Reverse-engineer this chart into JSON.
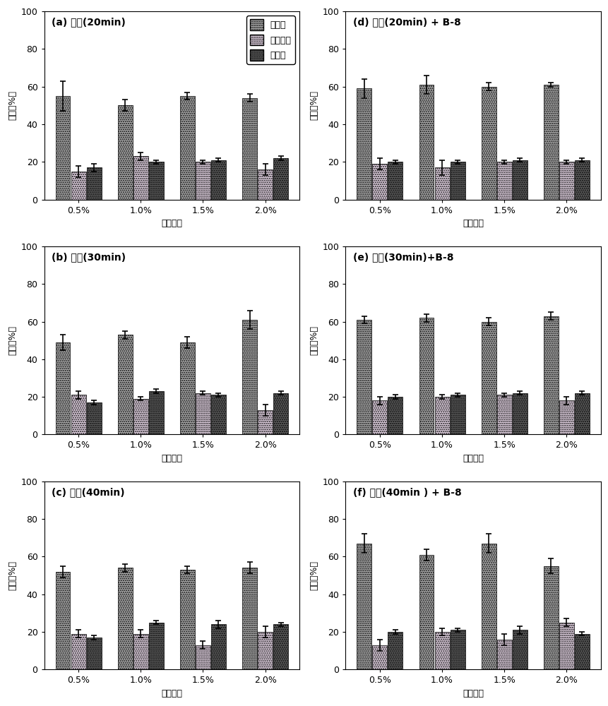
{
  "panels": [
    {
      "label": "(a) 硫酸(20min)",
      "categories": [
        "0.5%",
        "1.0%",
        "1.5%",
        "2.0%"
      ],
      "cellulose": [
        55,
        50,
        55,
        54
      ],
      "hemicellulose": [
        15,
        23,
        20,
        16
      ],
      "lignin": [
        17,
        20,
        21,
        22
      ],
      "cellulose_err": [
        8,
        3,
        2,
        2
      ],
      "hemicellulose_err": [
        3,
        2,
        1,
        3
      ],
      "lignin_err": [
        2,
        1,
        1,
        1
      ]
    },
    {
      "label": "(b) 硫酸(30min)",
      "categories": [
        "0.5%",
        "1.0%",
        "1.5%",
        "2.0%"
      ],
      "cellulose": [
        49,
        53,
        49,
        61
      ],
      "hemicellulose": [
        21,
        19,
        22,
        13
      ],
      "lignin": [
        17,
        23,
        21,
        22
      ],
      "cellulose_err": [
        4,
        2,
        3,
        5
      ],
      "hemicellulose_err": [
        2,
        1,
        1,
        3
      ],
      "lignin_err": [
        1,
        1,
        1,
        1
      ]
    },
    {
      "label": "(c) 硫酸(40min)",
      "categories": [
        "0.5%",
        "1.0%",
        "1.5%",
        "2.0%"
      ],
      "cellulose": [
        52,
        54,
        53,
        54
      ],
      "hemicellulose": [
        19,
        19,
        13,
        20
      ],
      "lignin": [
        17,
        25,
        24,
        24
      ],
      "cellulose_err": [
        3,
        2,
        2,
        3
      ],
      "hemicellulose_err": [
        2,
        2,
        2,
        3
      ],
      "lignin_err": [
        1,
        1,
        2,
        1
      ]
    },
    {
      "label": "(d) 硫酸(20min) + B-8",
      "categories": [
        "0.5%",
        "1.0%",
        "1.5%",
        "2.0%"
      ],
      "cellulose": [
        59,
        61,
        60,
        61
      ],
      "hemicellulose": [
        19,
        17,
        20,
        20
      ],
      "lignin": [
        20,
        20,
        21,
        21
      ],
      "cellulose_err": [
        5,
        5,
        2,
        1
      ],
      "hemicellulose_err": [
        3,
        4,
        1,
        1
      ],
      "lignin_err": [
        1,
        1,
        1,
        1
      ]
    },
    {
      "label": "(e) 硫酸(30min)+B-8",
      "categories": [
        "0.5%",
        "1.0%",
        "1.5%",
        "2.0%"
      ],
      "cellulose": [
        61,
        62,
        60,
        63
      ],
      "hemicellulose": [
        18,
        20,
        21,
        18
      ],
      "lignin": [
        20,
        21,
        22,
        22
      ],
      "cellulose_err": [
        2,
        2,
        2,
        2
      ],
      "hemicellulose_err": [
        2,
        1,
        1,
        2
      ],
      "lignin_err": [
        1,
        1,
        1,
        1
      ]
    },
    {
      "label": "(f) 硫酸(40min ) + B-8",
      "categories": [
        "0.5%",
        "1.0%",
        "1.5%",
        "2.0%"
      ],
      "cellulose": [
        67,
        61,
        67,
        55
      ],
      "hemicellulose": [
        13,
        20,
        16,
        25
      ],
      "lignin": [
        20,
        21,
        21,
        19
      ],
      "cellulose_err": [
        5,
        3,
        5,
        4
      ],
      "hemicellulose_err": [
        3,
        2,
        3,
        2
      ],
      "lignin_err": [
        1,
        1,
        2,
        1
      ]
    }
  ],
  "color_cellulose": "#b0b0b0",
  "color_hemicellulose": "#e8d8e8",
  "color_lignin": "#606060",
  "ylabel": "含量（%）",
  "xlabel": "硫酸浓度",
  "legend_labels": [
    "纤维素",
    "半纤维素",
    "木质素"
  ],
  "ylim": [
    0,
    100
  ],
  "yticks": [
    0,
    20,
    40,
    60,
    80,
    100
  ],
  "background_color": "#ffffff"
}
